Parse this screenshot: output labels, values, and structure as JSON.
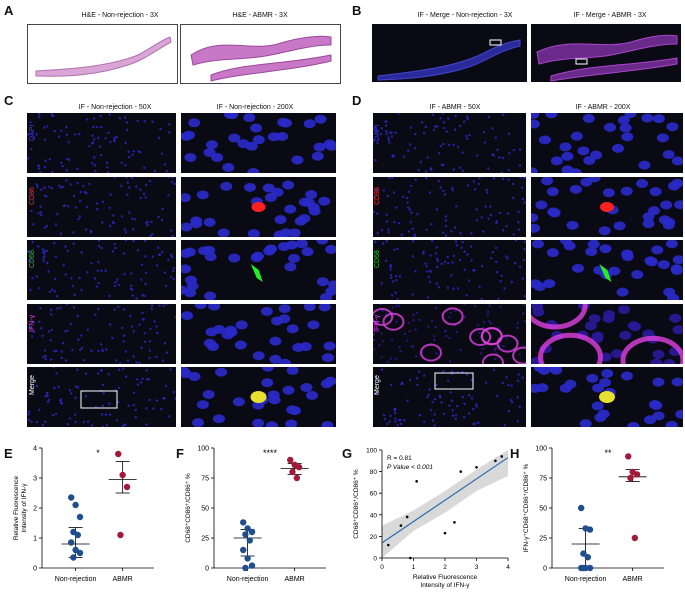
{
  "panels": {
    "A": {
      "letter": "A",
      "titles": [
        "H&E - Non-rejection - 3X",
        "H&E - ABMR - 3X"
      ]
    },
    "B": {
      "letter": "B",
      "titles": [
        "IF - Merge - Non-rejection - 3X",
        "IF - Merge - ABMR - 3X"
      ]
    },
    "C": {
      "letter": "C",
      "titles": [
        "IF - Non-rejection - 50X",
        "IF - Non-rejection - 200X"
      ]
    },
    "D": {
      "letter": "D",
      "titles": [
        "IF - ABMR - 50X",
        "IF - ABMR - 200X"
      ]
    },
    "rows": [
      {
        "label": "DAPI",
        "color": "#3b3bff"
      },
      {
        "label": "CD86",
        "color": "#ff3030"
      },
      {
        "label": "CD68",
        "color": "#22cc22"
      },
      {
        "label": "IFN-γ",
        "color": "#ff33ff"
      },
      {
        "label": "Merge",
        "color": "#ffffff"
      }
    ],
    "E": {
      "letter": "E"
    },
    "F": {
      "letter": "F"
    },
    "G": {
      "letter": "G"
    },
    "H": {
      "letter": "H"
    }
  },
  "chart_data": [
    {
      "id": "E",
      "type": "scatter",
      "ylabel": "Relative Fluorescence Intensity of IFN-γ",
      "categories": [
        "Non-rejection",
        "ABMR"
      ],
      "ylim": [
        0,
        4
      ],
      "yticks": [
        "0",
        "1",
        "2",
        "3",
        "4"
      ],
      "significance": "*",
      "series": [
        {
          "name": "Non-rejection",
          "color": "#1f4e8c",
          "values": [
            2.35,
            2.1,
            1.7,
            1.2,
            1.1,
            0.85,
            0.6,
            0.5,
            0.35
          ],
          "mean": 0.8,
          "ci": [
            0.35,
            1.35
          ]
        },
        {
          "name": "ABMR",
          "color": "#a01a3a",
          "values": [
            3.8,
            3.1,
            2.7,
            1.1
          ],
          "mean": 2.95,
          "ci": [
            2.5,
            3.55
          ]
        }
      ]
    },
    {
      "id": "F",
      "type": "scatter",
      "ylabel": "CD68⁺CD86⁺/CD86⁺ %",
      "categories": [
        "Non-rejection",
        "ABMR"
      ],
      "ylim": [
        0,
        100
      ],
      "yticks": [
        "0",
        "25",
        "50",
        "75",
        "100"
      ],
      "significance": "****",
      "series": [
        {
          "name": "Non-rejection",
          "color": "#1f4e8c",
          "values": [
            38,
            33,
            30,
            28,
            23,
            15,
            8,
            2,
            0
          ],
          "mean": 25,
          "ci": [
            10,
            32
          ]
        },
        {
          "name": "ABMR",
          "color": "#a01a3a",
          "values": [
            90,
            86,
            84,
            80,
            75
          ],
          "mean": 83,
          "ci": [
            78,
            87
          ]
        }
      ]
    },
    {
      "id": "G",
      "type": "scatter",
      "xlabel": "Relative Fluorescence Intensity of IFN-γ",
      "ylabel": "CD68⁺CD86⁺/CD86⁺ %",
      "xlim": [
        0,
        4
      ],
      "ylim": [
        0,
        100
      ],
      "xticks": [
        "0",
        "1",
        "2",
        "3",
        "4"
      ],
      "yticks": [
        "0",
        "20",
        "40",
        "60",
        "80",
        "100"
      ],
      "annotation": [
        "R = 0.81",
        "P Value < 0.001"
      ],
      "points": [
        [
          0.2,
          12
        ],
        [
          0.6,
          30
        ],
        [
          0.8,
          38
        ],
        [
          0.9,
          0
        ],
        [
          1.1,
          71
        ],
        [
          2.0,
          23
        ],
        [
          2.3,
          33
        ],
        [
          2.5,
          80
        ],
        [
          3.0,
          84
        ],
        [
          3.6,
          90
        ],
        [
          3.8,
          94
        ]
      ],
      "fit": [
        [
          0,
          14
        ],
        [
          4,
          93
        ]
      ],
      "band_lower": [
        [
          0,
          0
        ],
        [
          1,
          25
        ],
        [
          2,
          42
        ],
        [
          3,
          62
        ],
        [
          4,
          76
        ]
      ],
      "band_upper": [
        [
          0,
          30
        ],
        [
          1,
          44
        ],
        [
          2,
          62
        ],
        [
          3,
          82
        ],
        [
          4,
          108
        ]
      ]
    },
    {
      "id": "H",
      "type": "scatter",
      "ylabel": "IFN-γ⁺CD68⁺CD86⁺/CD86⁺ %",
      "categories": [
        "Non-rejection",
        "ABMR"
      ],
      "ylim": [
        0,
        100
      ],
      "yticks": [
        "0",
        "25",
        "50",
        "75",
        "100"
      ],
      "significance": "**",
      "series": [
        {
          "name": "Non-rejection",
          "color": "#1f4e8c",
          "values": [
            50,
            33,
            32,
            12,
            9,
            0,
            0,
            0,
            0
          ],
          "mean": 20,
          "ci": [
            0,
            33
          ]
        },
        {
          "name": "ABMR",
          "color": "#a01a3a",
          "values": [
            93,
            80,
            78,
            75,
            25
          ],
          "mean": 76,
          "ci": [
            72,
            82
          ]
        }
      ]
    }
  ]
}
